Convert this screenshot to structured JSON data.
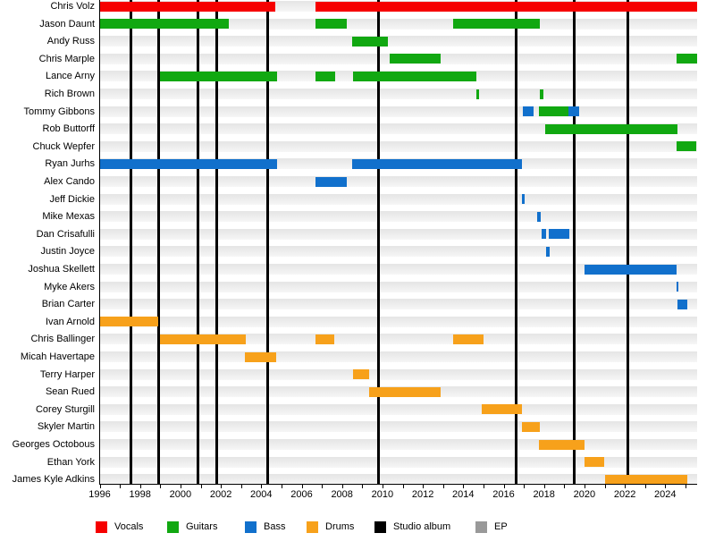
{
  "chart_data": {
    "type": "gantt",
    "members": [
      {
        "name": "Chris Volz",
        "segments": [
          {
            "role": "Vocals",
            "start": 1996.0,
            "end": 2004.7
          },
          {
            "role": "Vocals",
            "start": 2006.7,
            "end": 2025.6
          }
        ]
      },
      {
        "name": "Jason Daunt",
        "segments": [
          {
            "role": "Guitars",
            "start": 1996.0,
            "end": 2002.4
          },
          {
            "role": "Guitars",
            "start": 2006.7,
            "end": 2008.25
          },
          {
            "role": "Guitars",
            "start": 2013.5,
            "end": 2017.8
          }
        ]
      },
      {
        "name": "Andy Russ",
        "segments": [
          {
            "role": "Guitars",
            "start": 2008.5,
            "end": 2010.25
          }
        ]
      },
      {
        "name": "Chris Marple",
        "segments": [
          {
            "role": "Guitars",
            "start": 2010.35,
            "end": 2012.9
          },
          {
            "role": "Guitars",
            "start": 2024.55,
            "end": 2025.6
          }
        ]
      },
      {
        "name": "Lance Arny",
        "segments": [
          {
            "role": "Guitars",
            "start": 1999.0,
            "end": 2004.8
          },
          {
            "role": "Guitars",
            "start": 2006.7,
            "end": 2007.65
          },
          {
            "role": "Guitars",
            "start": 2008.55,
            "end": 2014.65
          }
        ]
      },
      {
        "name": "Rich Brown",
        "segments": [
          {
            "role": "Guitars",
            "start": 2014.65,
            "end": 2014.8
          },
          {
            "role": "Guitars",
            "start": 2017.8,
            "end": 2017.95
          }
        ]
      },
      {
        "name": "Tommy Gibbons",
        "segments": [
          {
            "role": "Bass",
            "start": 2016.95,
            "end": 2017.5
          },
          {
            "role": "Guitars",
            "start": 2017.75,
            "end": 2019.2
          },
          {
            "role": "Bass",
            "start": 2019.2,
            "end": 2019.75
          }
        ]
      },
      {
        "name": "Rob Buttorff",
        "segments": [
          {
            "role": "Guitars",
            "start": 2018.05,
            "end": 2024.6
          }
        ]
      },
      {
        "name": "Chuck Wepfer",
        "segments": [
          {
            "role": "Guitars",
            "start": 2024.55,
            "end": 2025.55
          }
        ]
      },
      {
        "name": "Ryan Jurhs",
        "segments": [
          {
            "role": "Bass",
            "start": 1996.0,
            "end": 2004.8
          },
          {
            "role": "Bass",
            "start": 2008.5,
            "end": 2016.9
          }
        ]
      },
      {
        "name": "Alex Cando",
        "segments": [
          {
            "role": "Bass",
            "start": 2006.7,
            "end": 2008.25
          }
        ]
      },
      {
        "name": "Jeff Dickie",
        "segments": [
          {
            "role": "Bass",
            "start": 2016.9,
            "end": 2017.05
          }
        ]
      },
      {
        "name": "Mike Mexas",
        "segments": [
          {
            "role": "Bass",
            "start": 2017.65,
            "end": 2017.85
          }
        ]
      },
      {
        "name": "Dan Crisafulli",
        "segments": [
          {
            "role": "Bass",
            "start": 2017.9,
            "end": 2018.1
          },
          {
            "role": "Bass",
            "start": 2018.25,
            "end": 2019.25
          }
        ]
      },
      {
        "name": "Justin Joyce",
        "segments": [
          {
            "role": "Bass",
            "start": 2018.1,
            "end": 2018.3
          }
        ]
      },
      {
        "name": "Joshua Skellett",
        "segments": [
          {
            "role": "Bass",
            "start": 2020.0,
            "end": 2024.55
          }
        ]
      },
      {
        "name": "Myke Akers",
        "segments": [
          {
            "role": "Bass",
            "start": 2024.55,
            "end": 2024.65
          }
        ]
      },
      {
        "name": "Brian Carter",
        "segments": [
          {
            "role": "Bass",
            "start": 2024.6,
            "end": 2025.1
          }
        ]
      },
      {
        "name": "Ivan Arnold",
        "segments": [
          {
            "role": "Drums",
            "start": 1996.0,
            "end": 1998.9
          }
        ]
      },
      {
        "name": "Chris Ballinger",
        "segments": [
          {
            "role": "Drums",
            "start": 1999.0,
            "end": 2003.25
          },
          {
            "role": "Drums",
            "start": 2006.7,
            "end": 2007.6
          },
          {
            "role": "Drums",
            "start": 2013.5,
            "end": 2015.0
          }
        ]
      },
      {
        "name": "Micah Havertape",
        "segments": [
          {
            "role": "Drums",
            "start": 2003.2,
            "end": 2004.75
          }
        ]
      },
      {
        "name": "Terry Harper",
        "segments": [
          {
            "role": "Drums",
            "start": 2008.55,
            "end": 2009.35
          }
        ]
      },
      {
        "name": "Sean Rued",
        "segments": [
          {
            "role": "Drums",
            "start": 2009.35,
            "end": 2012.9
          }
        ]
      },
      {
        "name": "Corey Sturgill",
        "segments": [
          {
            "role": "Drums",
            "start": 2014.9,
            "end": 2016.9
          }
        ]
      },
      {
        "name": "Skyler Martin",
        "segments": [
          {
            "role": "Drums",
            "start": 2016.9,
            "end": 2017.8
          }
        ]
      },
      {
        "name": "Georges Octobous",
        "segments": [
          {
            "role": "Drums",
            "start": 2017.75,
            "end": 2020.0
          }
        ]
      },
      {
        "name": "Ethan York",
        "segments": [
          {
            "role": "Drums",
            "start": 2020.0,
            "end": 2021.0
          }
        ]
      },
      {
        "name": "James Kyle Adkins",
        "segments": [
          {
            "role": "Drums",
            "start": 2021.0,
            "end": 2025.1
          }
        ]
      }
    ],
    "roles": {
      "Vocals": "#f60000",
      "Guitars": "#11a811",
      "Bass": "#1170cc",
      "Drums": "#f7a11b"
    },
    "event_markers": {
      "studio_album": {
        "label": "Studio album",
        "color": "#000000",
        "years": [
          1997.55,
          1998.9,
          2000.85,
          2001.8,
          2004.3,
          2009.8,
          2016.6,
          2019.5,
          2022.15
        ]
      },
      "ep": {
        "label": "EP",
        "color": "#999999",
        "years": []
      }
    },
    "x_axis": {
      "unit": "year",
      "min": 1996,
      "max": 2025.6,
      "tick_step": 1,
      "label_step": 2,
      "tick_labels": [
        "1996",
        "1998",
        "2000",
        "2002",
        "2004",
        "2006",
        "2008",
        "2010",
        "2012",
        "2014",
        "2016",
        "2018",
        "2020",
        "2022",
        "2024"
      ]
    },
    "legend": [
      {
        "label": "Vocals",
        "color": "#f60000"
      },
      {
        "label": "Guitars",
        "color": "#11a811"
      },
      {
        "label": "Bass",
        "color": "#1170cc"
      },
      {
        "label": "Drums",
        "color": "#f7a11b"
      },
      {
        "label": "Studio album",
        "color": "#000000"
      },
      {
        "label": "EP",
        "color": "#999999"
      }
    ]
  }
}
